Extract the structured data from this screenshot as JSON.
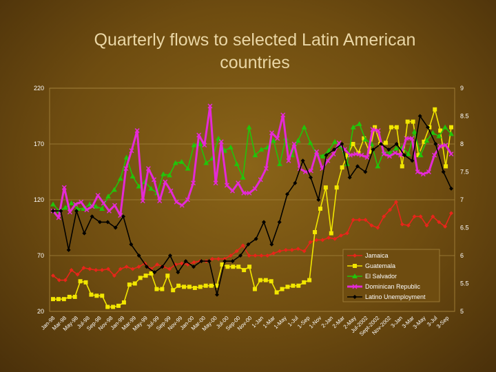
{
  "chart_data": {
    "type": "line",
    "title_lines": [
      "Quarterly flows to selected Latin American",
      "countries"
    ],
    "xlabels": [
      "Jan-98",
      "Mar-98",
      "May-98",
      "Jul-98",
      "Sep-98",
      "Nov-98",
      "Jan-99",
      "Mar-99",
      "May-99",
      "Jul-99",
      "Sep-99",
      "Nov-99",
      "Jan-00",
      "Mar-00",
      "May-00",
      "Jul-00",
      "Sep-00",
      "Nov-00",
      "1-Jan",
      "1-Mar",
      "1-May",
      "1-Jul",
      "1-Sep",
      "1-Nov",
      "2-Jan",
      "2-Mar",
      "2-May",
      "Jul-2002",
      "Sept-2002",
      "Nov-2002",
      "3-Jan",
      "3-Mar",
      "3-May",
      "3-Jul",
      "3-Sep"
    ],
    "y_left": {
      "min": 20,
      "max": 220,
      "ticks": [
        20,
        70,
        120,
        170,
        220
      ]
    },
    "y_right": {
      "min": 5,
      "max": 9,
      "ticks": [
        5,
        5.5,
        6,
        6.5,
        7,
        7.5,
        8,
        8.5,
        9
      ]
    },
    "grid": true,
    "legend_position": "bottom-right",
    "series": [
      {
        "name": "Jamaica",
        "color": "#e8251a",
        "marker": "diamond",
        "axis": "left",
        "values": [
          52,
          48,
          48,
          57,
          53,
          59,
          58,
          57,
          57,
          58,
          52,
          58,
          60,
          58,
          60,
          63,
          58,
          62,
          60,
          58,
          62,
          63,
          62,
          64,
          65,
          65,
          67,
          67,
          67,
          70,
          74,
          79,
          70,
          70,
          70,
          70,
          72,
          74,
          75,
          75,
          76,
          74,
          82,
          84,
          84,
          86,
          85,
          88,
          90,
          102,
          102,
          102,
          97,
          95,
          105,
          111,
          118,
          98,
          97,
          105,
          105,
          97,
          105,
          100,
          96,
          108
        ]
      },
      {
        "name": "Guatemala",
        "color": "#f2e600",
        "marker": "square",
        "axis": "left",
        "values": [
          31,
          31,
          31,
          33,
          33,
          47,
          46,
          35,
          34,
          34,
          24,
          24,
          25,
          28,
          44,
          45,
          50,
          52,
          54,
          40,
          40,
          52,
          39,
          43,
          42,
          42,
          41,
          42,
          43,
          43,
          43,
          62,
          60,
          60,
          60,
          57,
          60,
          40,
          48,
          48,
          47,
          37,
          40,
          42,
          43,
          43,
          46,
          48,
          91,
          112,
          131,
          90,
          131,
          149,
          160,
          170,
          162,
          175,
          163,
          185,
          170,
          171,
          185,
          185,
          150,
          190,
          190,
          160,
          172,
          185,
          201,
          182,
          150,
          185
        ]
      },
      {
        "name": "El Salvador",
        "color": "#22c40a",
        "marker": "triangle",
        "axis": "left",
        "values": [
          116,
          110,
          113,
          117,
          112,
          112,
          116,
          114,
          112,
          123,
          129,
          139,
          158,
          141,
          132,
          136,
          130,
          126,
          143,
          142,
          153,
          154,
          148,
          169,
          170,
          153,
          157,
          175,
          164,
          167,
          152,
          140,
          185,
          160,
          165,
          167,
          173,
          152,
          175,
          160,
          173,
          185,
          171,
          161,
          159,
          164,
          172,
          168,
          152,
          185,
          188,
          174,
          170,
          150,
          163,
          162,
          166,
          167,
          161,
          181,
          160,
          173,
          180,
          177,
          185,
          179
        ]
      },
      {
        "name": "Dominican Republic",
        "color": "#e42ad6",
        "marker": "x",
        "axis": "left",
        "values": [
          110,
          104,
          131,
          109,
          116,
          118,
          111,
          114,
          124,
          117,
          110,
          115,
          106,
          148,
          164,
          182,
          119,
          148,
          138,
          119,
          136,
          128,
          118,
          115,
          120,
          135,
          178,
          169,
          204,
          135,
          172,
          133,
          128,
          135,
          126,
          126,
          130,
          138,
          148,
          180,
          175,
          196,
          155,
          170,
          148,
          145,
          146,
          163,
          148,
          155,
          161,
          171,
          165,
          160,
          161,
          160,
          158,
          183,
          182,
          161,
          159,
          162,
          160,
          175,
          175,
          145,
          143,
          145,
          160,
          168,
          169,
          161
        ]
      },
      {
        "name": "Latino Unemployment",
        "color": "#000000",
        "marker": "diamond",
        "axis": "right",
        "values": [
          6.8,
          6.8,
          6.1,
          6.8,
          6.4,
          6.7,
          6.6,
          6.6,
          6.5,
          6.7,
          6.2,
          6.0,
          5.8,
          5.7,
          5.8,
          6.0,
          5.7,
          5.9,
          5.8,
          5.9,
          5.9,
          5.3,
          5.9,
          5.9,
          6.0,
          6.2,
          6.3,
          6.6,
          6.2,
          6.6,
          7.1,
          7.3,
          7.7,
          7.4,
          7.0,
          7.8,
          7.9,
          8.0,
          7.4,
          7.6,
          7.5,
          7.9,
          8.0,
          7.9,
          8.0,
          7.8,
          7.7,
          8.5,
          8.3,
          8.0,
          7.5,
          7.2
        ]
      }
    ]
  }
}
